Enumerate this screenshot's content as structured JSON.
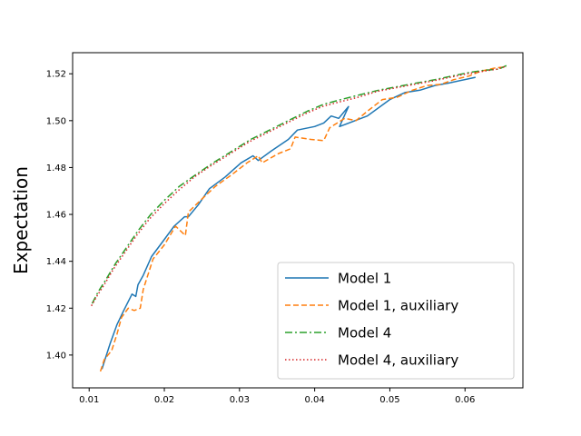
{
  "chart_data": {
    "type": "line",
    "title": "",
    "xlabel": "",
    "ylabel": "Expectation",
    "xlim": [
      0.0078,
      0.0677
    ],
    "ylim": [
      1.386,
      1.529
    ],
    "x_ticks": [
      "0.01",
      "0.02",
      "0.03",
      "0.04",
      "0.05",
      "0.06"
    ],
    "y_ticks": [
      "1.40",
      "1.42",
      "1.44",
      "1.46",
      "1.48",
      "1.50",
      "1.52"
    ],
    "grid": false,
    "legend_position": "lower-right",
    "series": [
      {
        "name": "Model 1",
        "color": "#1f77b4",
        "style": "solid",
        "x": [
          0.0117,
          0.0122,
          0.0128,
          0.0137,
          0.0146,
          0.0157,
          0.0162,
          0.0165,
          0.0172,
          0.0183,
          0.0197,
          0.0213,
          0.0227,
          0.0232,
          0.0245,
          0.026,
          0.0281,
          0.0302,
          0.0318,
          0.0325,
          0.0342,
          0.0365,
          0.0377,
          0.04,
          0.0412,
          0.0422,
          0.0432,
          0.0445,
          0.0433,
          0.047,
          0.05,
          0.052,
          0.054,
          0.056,
          0.0578,
          0.0614
        ],
        "y": [
          1.394,
          1.399,
          1.405,
          1.413,
          1.419,
          1.426,
          1.425,
          1.43,
          1.434,
          1.442,
          1.448,
          1.455,
          1.459,
          1.459,
          1.464,
          1.471,
          1.476,
          1.482,
          1.485,
          1.483,
          1.487,
          1.492,
          1.496,
          1.4975,
          1.499,
          1.502,
          1.501,
          1.506,
          1.4975,
          1.502,
          1.509,
          1.512,
          1.513,
          1.515,
          1.516,
          1.5185
        ]
      },
      {
        "name": "Model 1, auxiliary",
        "color": "#ff7f0e",
        "style": "dashed",
        "x": [
          0.0115,
          0.012,
          0.013,
          0.0137,
          0.0143,
          0.0152,
          0.016,
          0.0168,
          0.0172,
          0.0185,
          0.02,
          0.0215,
          0.0228,
          0.0232,
          0.0248,
          0.0268,
          0.029,
          0.031,
          0.0325,
          0.033,
          0.0352,
          0.0368,
          0.0374,
          0.0395,
          0.0412,
          0.042,
          0.043,
          0.044,
          0.0455,
          0.047,
          0.049,
          0.051,
          0.053,
          0.055,
          0.0568,
          0.0585,
          0.0605,
          0.062,
          0.064,
          0.0655
        ],
        "y": [
          1.393,
          1.398,
          1.402,
          1.409,
          1.416,
          1.42,
          1.419,
          1.42,
          1.428,
          1.441,
          1.447,
          1.455,
          1.451,
          1.461,
          1.466,
          1.472,
          1.477,
          1.482,
          1.485,
          1.482,
          1.486,
          1.488,
          1.493,
          1.492,
          1.4915,
          1.497,
          1.499,
          1.501,
          1.5,
          1.504,
          1.509,
          1.51,
          1.513,
          1.515,
          1.5155,
          1.5175,
          1.519,
          1.521,
          1.5225,
          1.523
        ]
      },
      {
        "name": "Model 4",
        "color": "#2ca02c",
        "style": "dashdot",
        "x": [
          0.0104,
          0.0112,
          0.0122,
          0.0135,
          0.015,
          0.0165,
          0.0182,
          0.02,
          0.022,
          0.0242,
          0.0265,
          0.029,
          0.0315,
          0.034,
          0.0365,
          0.039,
          0.0412,
          0.0435,
          0.046,
          0.0485,
          0.051,
          0.0535,
          0.056,
          0.0582,
          0.0605,
          0.0625,
          0.0645,
          0.0655
        ],
        "y": [
          1.422,
          1.427,
          1.432,
          1.439,
          1.446,
          1.453,
          1.46,
          1.466,
          1.472,
          1.477,
          1.482,
          1.487,
          1.492,
          1.496,
          1.5,
          1.504,
          1.507,
          1.509,
          1.511,
          1.513,
          1.5145,
          1.516,
          1.5175,
          1.519,
          1.5205,
          1.5215,
          1.522,
          1.5235
        ]
      },
      {
        "name": "Model 4, auxiliary",
        "color": "#d62728",
        "style": "dotted",
        "x": [
          0.0103,
          0.011,
          0.012,
          0.0133,
          0.0148,
          0.0163,
          0.018,
          0.0198,
          0.0218,
          0.024,
          0.0263,
          0.0288,
          0.0313,
          0.0338,
          0.0363,
          0.0388,
          0.041,
          0.0433,
          0.0458,
          0.0483,
          0.0508,
          0.0533,
          0.0558,
          0.058,
          0.0603,
          0.0623,
          0.0643,
          0.0653
        ],
        "y": [
          1.421,
          1.425,
          1.43,
          1.437,
          1.444,
          1.451,
          1.458,
          1.464,
          1.47,
          1.476,
          1.481,
          1.486,
          1.491,
          1.495,
          1.499,
          1.503,
          1.506,
          1.508,
          1.51,
          1.5125,
          1.514,
          1.5155,
          1.517,
          1.5185,
          1.52,
          1.521,
          1.522,
          1.523
        ]
      }
    ]
  }
}
